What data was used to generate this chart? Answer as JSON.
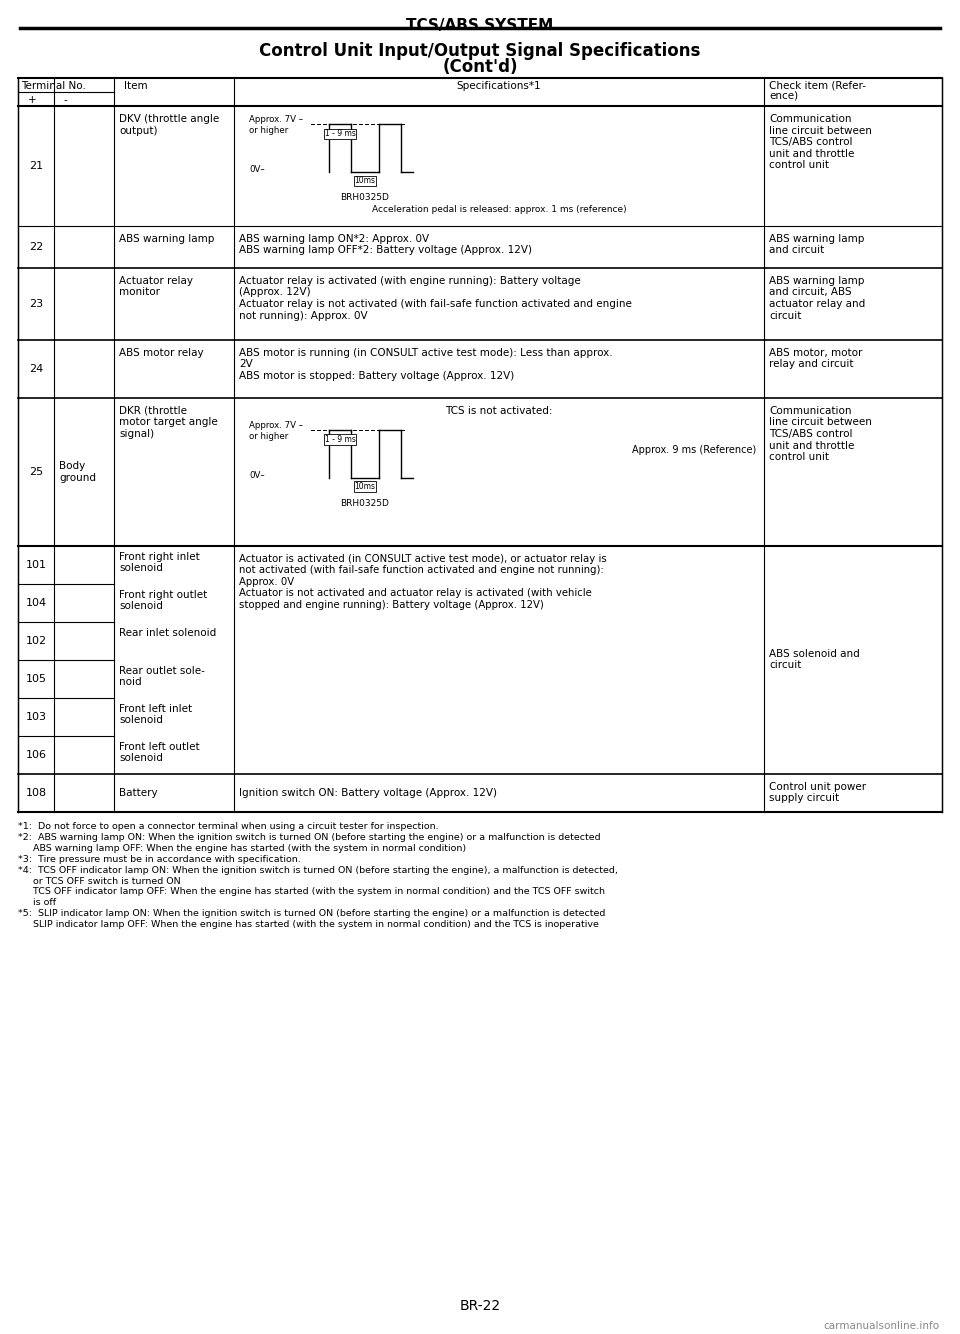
{
  "title1": "TCS/ABS SYSTEM",
  "title2": "Control Unit Input/Output Signal Specifications",
  "title3": "(Cont'd)",
  "bg_color": "#ffffff",
  "col_plus": "+",
  "col_minus": "-",
  "solenoid_spec": "Actuator is activated (in CONSULT active test mode), or actuator relay is\nnot activated (with fail-safe function activated and engine not running):\nApprox. 0V\nActuator is not activated and actuator relay is activated (with vehicle\nstopped and engine running): Battery voltage (Approx. 12V)",
  "solenoid_check": "ABS solenoid and\ncircuit",
  "footnotes": [
    "*1:  Do not force to open a connector terminal when using a circuit tester for inspection.",
    "*2:  ABS warning lamp ON: When the ignition switch is turned ON (before starting the engine) or a malfunction is detected",
    "     ABS warning lamp OFF: When the engine has started (with the system in normal condition)",
    "*3:  Tire pressure must be in accordance with specification.",
    "*4:  TCS OFF indicator lamp ON: When the ignition switch is turned ON (before starting the engine), a malfunction is detected,",
    "     or TCS OFF switch is turned ON",
    "     TCS OFF indicator lamp OFF: When the engine has started (with the system in normal condition) and the TCS OFF switch",
    "     is off",
    "*5:  SLIP indicator lamp ON: When the ignition switch is turned ON (before starting the engine) or a malfunction is detected",
    "     SLIP indicator lamp OFF: When the engine has started (with the system in normal condition) and the TCS is inoperative"
  ],
  "page_num": "BR-22",
  "watermark": "carmanualsonline.info"
}
